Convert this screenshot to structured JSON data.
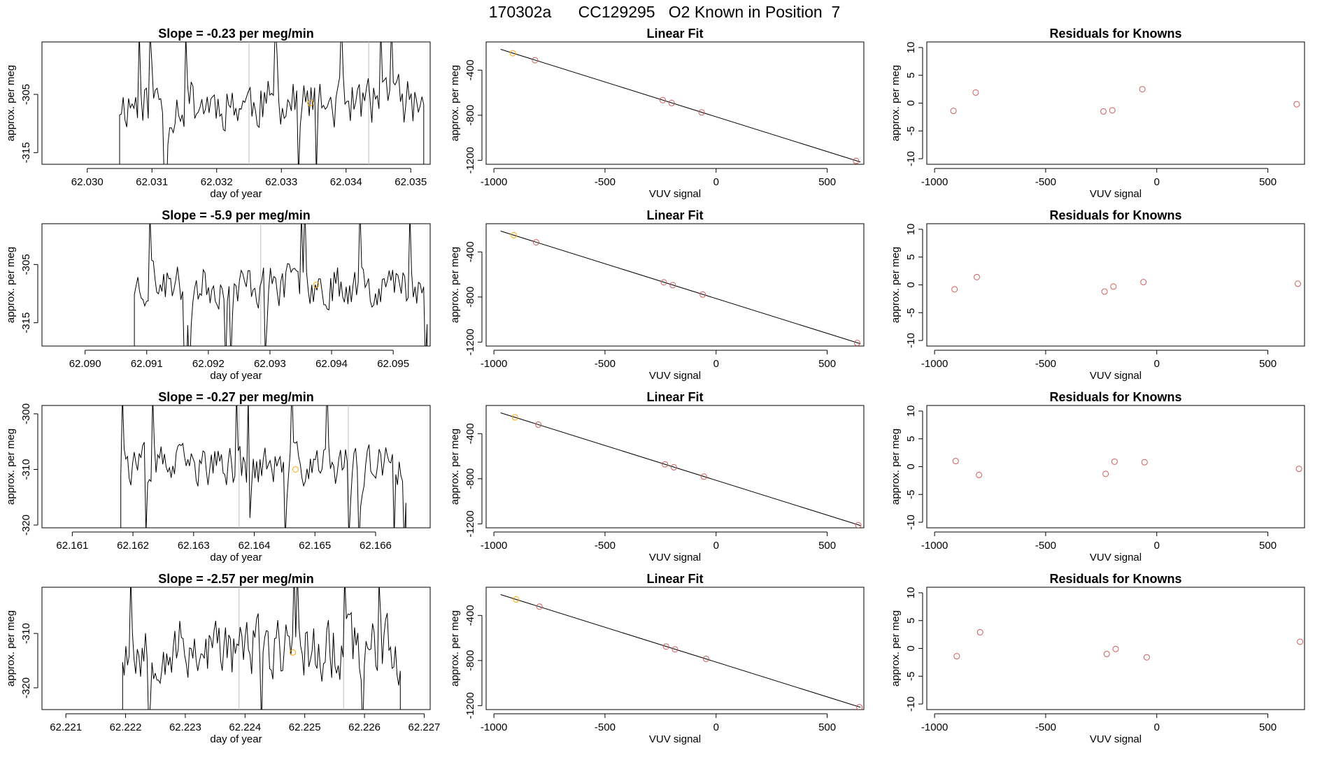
{
  "suptitle": "170302a      CC129295   O2 Known in Position  7",
  "colors": {
    "line": "#000000",
    "point": "#cd5c5c",
    "highlight": "#ffa500",
    "vline": "#bebebe"
  },
  "chart_data": [
    {
      "row": 0,
      "type": "line",
      "title": "Slope =  -0.23  per meg/min",
      "xlabel": "day of year",
      "ylabel": "approx. per meg",
      "xlim": [
        62.0293,
        62.0353
      ],
      "ylim": [
        -317,
        -296
      ],
      "xticks": [
        62.03,
        62.031,
        62.032,
        62.033,
        62.034,
        62.035
      ],
      "xtick_labels": [
        "62.030",
        "62.031",
        "62.032",
        "62.033",
        "62.034",
        "62.035"
      ],
      "yticks": [
        -305,
        -315
      ],
      "ytick_labels": [
        "-305",
        "-315"
      ],
      "t_start": 62.0305,
      "t_end": 62.0352,
      "amplitude": 6,
      "seed": 11,
      "vlines": [
        62.0325,
        62.03435
      ],
      "marker": {
        "x": 62.03345,
        "y": -306.5
      }
    },
    {
      "row": 1,
      "type": "line",
      "title": "Slope =  -5.9  per meg/min",
      "xlabel": "day of year",
      "ylabel": "approx. per meg",
      "xlim": [
        62.0893,
        62.0956
      ],
      "ylim": [
        -319,
        -298
      ],
      "xticks": [
        62.09,
        62.091,
        62.092,
        62.093,
        62.094,
        62.095
      ],
      "xtick_labels": [
        "62.090",
        "62.091",
        "62.092",
        "62.093",
        "62.094",
        "62.095"
      ],
      "yticks": [
        -305,
        -315
      ],
      "ytick_labels": [
        "-305",
        "-315"
      ],
      "t_start": 62.0908,
      "t_end": 62.09555,
      "amplitude": 5,
      "seed": 23,
      "vlines": [
        62.09285
      ],
      "marker": {
        "x": 62.09375,
        "y": -308.5
      }
    },
    {
      "row": 2,
      "type": "line",
      "title": "Slope =  -0.27  per meg/min",
      "xlabel": "day of year",
      "ylabel": "approx. per meg",
      "xlim": [
        62.1605,
        62.1669
      ],
      "ylim": [
        -320.5,
        -298.5
      ],
      "xticks": [
        62.161,
        62.162,
        62.163,
        62.164,
        62.165,
        62.166
      ],
      "xtick_labels": [
        "62.161",
        "62.162",
        "62.163",
        "62.164",
        "62.165",
        "62.166"
      ],
      "yticks": [
        -300,
        -310,
        -320
      ],
      "ytick_labels": [
        "-300",
        "-310",
        "-320"
      ],
      "t_start": 62.1618,
      "t_end": 62.1665,
      "amplitude": 5,
      "seed": 37,
      "vlines": [
        62.16375,
        62.16555
      ],
      "marker": {
        "x": 62.16468,
        "y": -310
      }
    },
    {
      "row": 3,
      "type": "line",
      "title": "Slope =  -2.57  per meg/min",
      "xlabel": "day of year",
      "ylabel": "approx. per meg",
      "xlim": [
        62.2206,
        62.2271
      ],
      "ylim": [
        -324,
        -301.5
      ],
      "xticks": [
        62.221,
        62.222,
        62.223,
        62.224,
        62.225,
        62.226,
        62.227
      ],
      "xtick_labels": [
        "62.221",
        "62.222",
        "62.223",
        "62.224",
        "62.225",
        "62.226",
        "62.227"
      ],
      "yticks": [
        -310,
        -320
      ],
      "ytick_labels": [
        "-310",
        "-320"
      ],
      "t_start": 62.22195,
      "t_end": 62.2266,
      "amplitude": 8,
      "seed": 53,
      "vlines": [
        62.2239,
        62.22565
      ],
      "marker": {
        "x": 62.2248,
        "y": -313.5
      }
    },
    {
      "row": 0,
      "type": "scatter",
      "title": "Linear Fit",
      "xlabel": "VUV signal",
      "ylabel": "approx. per meg",
      "xlim": [
        -1035,
        665
      ],
      "ylim": [
        -1235,
        -150
      ],
      "xticks": [
        -1000,
        -500,
        0,
        500
      ],
      "xtick_labels": [
        "-1000",
        "-500",
        "0",
        "500"
      ],
      "yticks": [
        -400,
        -800,
        -1200
      ],
      "ytick_labels": [
        "-400",
        "-800",
        "-1200"
      ],
      "fit": {
        "x": [
          -970,
          650
        ],
        "y": [
          -215,
          -1215
        ]
      },
      "points": [
        {
          "x": -915,
          "y": -250,
          "highlight": true
        },
        {
          "x": -815,
          "y": -312
        },
        {
          "x": -240,
          "y": -666
        },
        {
          "x": -200,
          "y": -692
        },
        {
          "x": -65,
          "y": -775
        },
        {
          "x": 630,
          "y": -1205
        }
      ]
    },
    {
      "row": 1,
      "type": "scatter",
      "title": "Linear Fit",
      "xlabel": "VUV signal",
      "ylabel": "approx. per meg",
      "xlim": [
        -1035,
        665
      ],
      "ylim": [
        -1235,
        -150
      ],
      "xticks": [
        -1000,
        -500,
        0,
        500
      ],
      "xtick_labels": [
        "-1000",
        "-500",
        "0",
        "500"
      ],
      "yticks": [
        -400,
        -800,
        -1200
      ],
      "ytick_labels": [
        "-400",
        "-800",
        "-1200"
      ],
      "fit": {
        "x": [
          -970,
          650
        ],
        "y": [
          -215,
          -1215
        ]
      },
      "points": [
        {
          "x": -910,
          "y": -252,
          "highlight": true
        },
        {
          "x": -810,
          "y": -315
        },
        {
          "x": -235,
          "y": -670
        },
        {
          "x": -195,
          "y": -695
        },
        {
          "x": -60,
          "y": -778
        },
        {
          "x": 635,
          "y": -1208
        }
      ]
    },
    {
      "row": 2,
      "type": "scatter",
      "title": "Linear Fit",
      "xlabel": "VUV signal",
      "ylabel": "approx. per meg",
      "xlim": [
        -1035,
        665
      ],
      "ylim": [
        -1235,
        -150
      ],
      "xticks": [
        -1000,
        -500,
        0,
        500
      ],
      "xtick_labels": [
        "-1000",
        "-500",
        "0",
        "500"
      ],
      "yticks": [
        -400,
        -800,
        -1200
      ],
      "ytick_labels": [
        "-400",
        "-800",
        "-1200"
      ],
      "fit": {
        "x": [
          -970,
          650
        ],
        "y": [
          -215,
          -1215
        ]
      },
      "points": [
        {
          "x": -905,
          "y": -255,
          "highlight": true
        },
        {
          "x": -800,
          "y": -320
        },
        {
          "x": -230,
          "y": -672
        },
        {
          "x": -190,
          "y": -698
        },
        {
          "x": -55,
          "y": -781
        },
        {
          "x": 640,
          "y": -1211
        }
      ]
    },
    {
      "row": 3,
      "type": "scatter",
      "title": "Linear Fit",
      "xlabel": "VUV signal",
      "ylabel": "approx. per meg",
      "xlim": [
        -1035,
        665
      ],
      "ylim": [
        -1235,
        -150
      ],
      "xticks": [
        -1000,
        -500,
        0,
        500
      ],
      "xtick_labels": [
        "-1000",
        "-500",
        "0",
        "500"
      ],
      "yticks": [
        -400,
        -800,
        -1200
      ],
      "ytick_labels": [
        "-400",
        "-800",
        "-1200"
      ],
      "fit": {
        "x": [
          -970,
          650
        ],
        "y": [
          -215,
          -1215
        ]
      },
      "points": [
        {
          "x": -900,
          "y": -258,
          "highlight": true
        },
        {
          "x": -795,
          "y": -322
        },
        {
          "x": -225,
          "y": -676
        },
        {
          "x": -185,
          "y": -701
        },
        {
          "x": -45,
          "y": -785
        },
        {
          "x": 645,
          "y": -1214
        }
      ]
    },
    {
      "row": 0,
      "type": "scatter",
      "title": "Residuals for Knowns",
      "xlabel": "VUV signal",
      "ylabel": "approx. per meg",
      "xlim": [
        -1035,
        665
      ],
      "ylim": [
        -11,
        11
      ],
      "xticks": [
        -1000,
        -500,
        0,
        500
      ],
      "xtick_labels": [
        "-1000",
        "-500",
        "0",
        "500"
      ],
      "yticks": [
        10,
        5,
        0,
        -5,
        -10
      ],
      "ytick_labels": [
        "10",
        "5",
        "0",
        "-5",
        "-10"
      ],
      "points": [
        {
          "x": -915,
          "y": -1.4
        },
        {
          "x": -815,
          "y": 1.9
        },
        {
          "x": -240,
          "y": -1.5
        },
        {
          "x": -200,
          "y": -1.3
        },
        {
          "x": -65,
          "y": 2.5
        },
        {
          "x": 630,
          "y": -0.2
        }
      ]
    },
    {
      "row": 1,
      "type": "scatter",
      "title": "Residuals for Knowns",
      "xlabel": "VUV signal",
      "ylabel": "approx. per meg",
      "xlim": [
        -1035,
        665
      ],
      "ylim": [
        -11,
        11
      ],
      "xticks": [
        -1000,
        -500,
        0,
        500
      ],
      "xtick_labels": [
        "-1000",
        "-500",
        "0",
        "500"
      ],
      "yticks": [
        10,
        5,
        0,
        -5,
        -10
      ],
      "ytick_labels": [
        "10",
        "5",
        "0",
        "-5",
        "-10"
      ],
      "points": [
        {
          "x": -910,
          "y": -0.8
        },
        {
          "x": -810,
          "y": 1.4
        },
        {
          "x": -235,
          "y": -1.2
        },
        {
          "x": -195,
          "y": -0.3
        },
        {
          "x": -60,
          "y": 0.5
        },
        {
          "x": 635,
          "y": 0.2
        }
      ]
    },
    {
      "row": 2,
      "type": "scatter",
      "title": "Residuals for Knowns",
      "xlabel": "VUV signal",
      "ylabel": "approx. per meg",
      "xlim": [
        -1035,
        665
      ],
      "ylim": [
        -11,
        11
      ],
      "xticks": [
        -1000,
        -500,
        0,
        500
      ],
      "xtick_labels": [
        "-1000",
        "-500",
        "0",
        "500"
      ],
      "yticks": [
        10,
        5,
        0,
        -5,
        -10
      ],
      "ytick_labels": [
        "10",
        "5",
        "0",
        "-5",
        "-10"
      ],
      "points": [
        {
          "x": -905,
          "y": 1.0
        },
        {
          "x": -800,
          "y": -1.5
        },
        {
          "x": -230,
          "y": -1.3
        },
        {
          "x": -190,
          "y": 0.9
        },
        {
          "x": -55,
          "y": 0.8
        },
        {
          "x": 640,
          "y": -0.4
        }
      ]
    },
    {
      "row": 3,
      "type": "scatter",
      "title": "Residuals for Knowns",
      "xlabel": "VUV signal",
      "ylabel": "approx. per meg",
      "xlim": [
        -1035,
        665
      ],
      "ylim": [
        -11,
        11
      ],
      "xticks": [
        -1000,
        -500,
        0,
        500
      ],
      "xtick_labels": [
        "-1000",
        "-500",
        "0",
        "500"
      ],
      "yticks": [
        10,
        5,
        0,
        -5,
        -10
      ],
      "ytick_labels": [
        "10",
        "5",
        "0",
        "-5",
        "-10"
      ],
      "points": [
        {
          "x": -900,
          "y": -1.4
        },
        {
          "x": -795,
          "y": 2.9
        },
        {
          "x": -225,
          "y": -1.0
        },
        {
          "x": -185,
          "y": -0.1
        },
        {
          "x": -45,
          "y": -1.6
        },
        {
          "x": 645,
          "y": 1.2
        }
      ]
    }
  ]
}
